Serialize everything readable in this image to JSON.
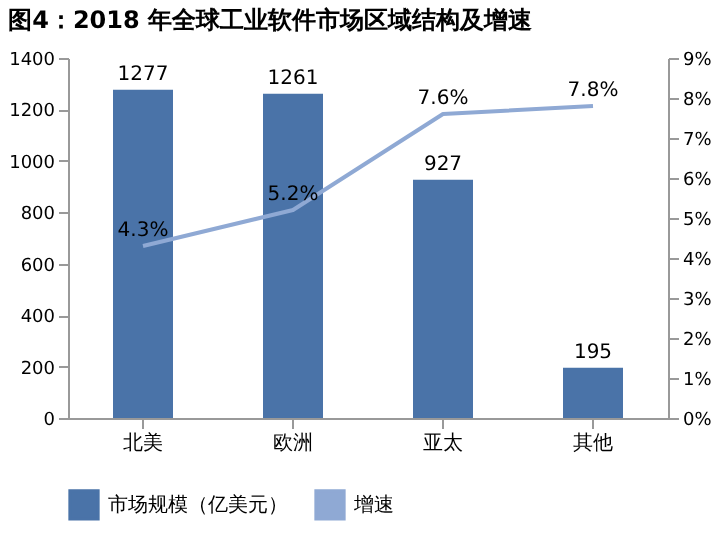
{
  "chart_data": {
    "type": "bar",
    "title": "图4：2018 年全球工业软件市场区域结构及增速",
    "categories": [
      "北美",
      "欧洲",
      "亚太",
      "其他"
    ],
    "series": [
      {
        "name": "市场规模（亿美元）",
        "color": "#4a73a8",
        "values": [
          1277,
          1261,
          927,
          195
        ],
        "value_labels": [
          "1277",
          "1261",
          "927",
          "195"
        ]
      },
      {
        "name": "增速",
        "type": "line",
        "axis": "y2",
        "color": "#8fa9d4",
        "values": [
          4.3,
          5.2,
          7.6,
          7.8
        ],
        "value_labels": [
          "4.3%",
          "5.2%",
          "7.6%",
          "7.8%"
        ]
      }
    ],
    "ylim": [
      0,
      1400
    ],
    "yticks": [
      0,
      200,
      400,
      600,
      800,
      1000,
      1200,
      1400
    ],
    "y2lim": [
      0,
      9
    ],
    "y2ticks": [
      {
        "value": 0,
        "label": "0%"
      },
      {
        "value": 1,
        "label": "1%"
      },
      {
        "value": 2,
        "label": "2%"
      },
      {
        "value": 3,
        "label": "3%"
      },
      {
        "value": 4,
        "label": "4%"
      },
      {
        "value": 5,
        "label": "5%"
      },
      {
        "value": 6,
        "label": "6%"
      },
      {
        "value": 7,
        "label": "7%"
      },
      {
        "value": 8,
        "label": "8%"
      },
      {
        "value": 9,
        "label": "9%"
      }
    ],
    "grid": false,
    "legend": "bottom"
  }
}
